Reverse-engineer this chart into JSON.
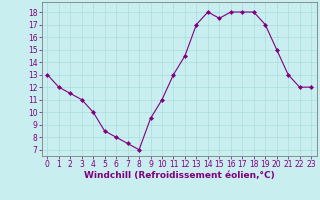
{
  "x": [
    0,
    1,
    2,
    3,
    4,
    5,
    6,
    7,
    8,
    9,
    10,
    11,
    12,
    13,
    14,
    15,
    16,
    17,
    18,
    19,
    20,
    21,
    22,
    23
  ],
  "y": [
    13,
    12,
    11.5,
    11,
    10,
    8.5,
    8,
    7.5,
    7,
    9.5,
    11,
    13,
    14.5,
    17,
    18,
    17.5,
    18,
    18,
    18,
    17,
    15,
    13,
    12,
    12
  ],
  "line_color": "#800080",
  "marker": "D",
  "marker_size": 2,
  "bg_color": "#c8eef0",
  "grid_color": "#aadddd",
  "xlabel": "Windchill (Refroidissement éolien,°C)",
  "xlabel_color": "#800080",
  "tick_color": "#800080",
  "spine_color": "#808080",
  "ylim": [
    6.5,
    18.8
  ],
  "xlim": [
    -0.5,
    23.5
  ],
  "yticks": [
    7,
    8,
    9,
    10,
    11,
    12,
    13,
    14,
    15,
    16,
    17,
    18
  ],
  "xticks": [
    0,
    1,
    2,
    3,
    4,
    5,
    6,
    7,
    8,
    9,
    10,
    11,
    12,
    13,
    14,
    15,
    16,
    17,
    18,
    19,
    20,
    21,
    22,
    23
  ],
  "font_size": 5.5,
  "xlabel_fontsize": 6.5
}
